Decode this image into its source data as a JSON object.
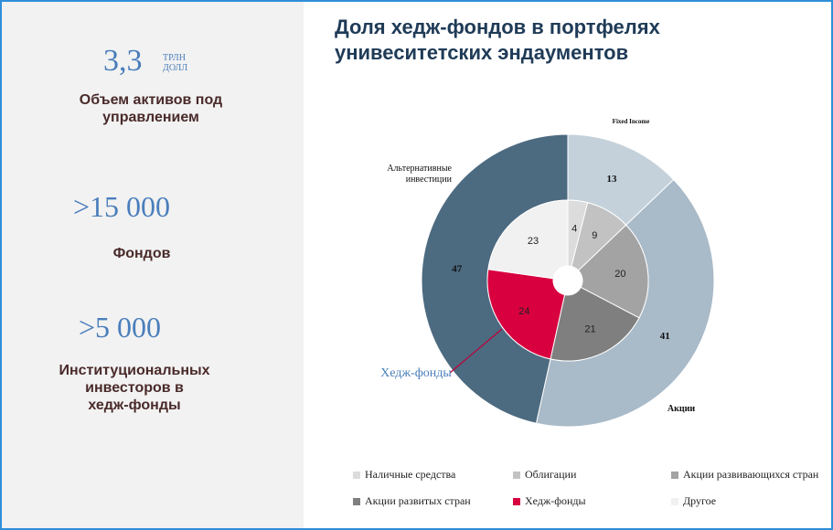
{
  "stats": [
    {
      "value": "3,3",
      "unit_line1": "ТРЛН",
      "unit_line2": "ДОЛЛ",
      "label": "Объем активов под\nуправлением"
    },
    {
      "value": ">15 000",
      "label": "Фондов"
    },
    {
      "value": ">5 000",
      "label": "Институциональных\nинвесторов в\nхедж-фонды"
    }
  ],
  "chart_title": "Доля хедж-фондов в портфелях\nунивеситетских эндаументов",
  "chart_data": {
    "type": "pie",
    "outer_ring": {
      "categories": [
        "Fixed Income",
        "Акции",
        "Альтернативные инвестиции"
      ],
      "values": [
        13,
        41,
        47
      ],
      "colors": [
        "#c4d1da",
        "#a9bac8",
        "#4c6a80"
      ]
    },
    "inner_ring": {
      "categories": [
        "Наличные средства",
        "Облигации",
        "Акции развивающихся стран",
        "Акции развитых стран",
        "Хедж-фонды",
        "Другое"
      ],
      "values": [
        4,
        9,
        20,
        21,
        24,
        23
      ],
      "colors": [
        "#dcdcdc",
        "#c2c2c2",
        "#a3a3a3",
        "#7f7f7f",
        "#d8003f",
        "#f1f1f1"
      ]
    },
    "annotations": {
      "outer_labels": {
        "fixed_income": "Fixed Income",
        "equity": "Акции",
        "alternatives": "Альтернативные\nинвестиции"
      },
      "callout": "Хедж-фонды"
    },
    "legend": {
      "placement": "bottom",
      "items": [
        {
          "label": "Наличные средства",
          "color": "#dcdcdc"
        },
        {
          "label": "Облигации",
          "color": "#c2c2c2"
        },
        {
          "label": "Акции развивающихся стран",
          "color": "#a3a3a3"
        },
        {
          "label": "Акции развитых стран",
          "color": "#7f7f7f"
        },
        {
          "label": "Хедж-фонды",
          "color": "#d8003f"
        },
        {
          "label": "Другое",
          "color": "#f1f1f1"
        }
      ]
    }
  }
}
